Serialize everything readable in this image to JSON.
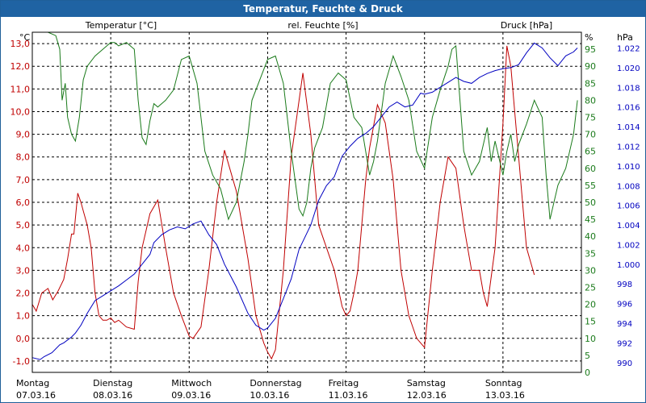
{
  "title": "Temperatur, Feuchte & Druck",
  "colors": {
    "temperature": "#c00000",
    "humidity": "#1a7a1a",
    "pressure": "#0000c0",
    "grid": "#000000",
    "titlebar": "#1f63a3"
  },
  "chart_data": {
    "type": "line",
    "title": "Temperatur, Feuchte & Druck",
    "xlabel": "",
    "x_days": [
      {
        "day": "Montag",
        "date": "07.03.16"
      },
      {
        "day": "Dienstag",
        "date": "08.03.16"
      },
      {
        "day": "Mittwoch",
        "date": "09.03.16"
      },
      {
        "day": "Donnerstag",
        "date": "10.03.16"
      },
      {
        "day": "Freitag",
        "date": "11.03.16"
      },
      {
        "day": "Samstag",
        "date": "12.03.16"
      },
      {
        "day": "Sonntag",
        "date": "13.03.16"
      }
    ],
    "xlim": [
      0,
      7
    ],
    "axes": {
      "left": {
        "label": "Temperatur [°C]",
        "unit": "°C",
        "min": -1.5,
        "max": 13.5,
        "ticks": [
          "-1,0",
          "0,0",
          "1,0",
          "2,0",
          "3,0",
          "4,0",
          "5,0",
          "6,0",
          "7,0",
          "8,0",
          "9,0",
          "10,0",
          "11,0",
          "12,0",
          "13,0"
        ],
        "tick_values": [
          -1,
          0,
          1,
          2,
          3,
          4,
          5,
          6,
          7,
          8,
          9,
          10,
          11,
          12,
          13
        ]
      },
      "right1": {
        "label": "rel. Feuchte [%]",
        "unit": "%",
        "min": 0,
        "max": 100,
        "ticks": [
          "0",
          "5",
          "10",
          "15",
          "20",
          "25",
          "30",
          "35",
          "40",
          "45",
          "50",
          "55",
          "60",
          "65",
          "70",
          "75",
          "80",
          "85",
          "90",
          "95"
        ],
        "tick_values": [
          0,
          5,
          10,
          15,
          20,
          25,
          30,
          35,
          40,
          45,
          50,
          55,
          60,
          65,
          70,
          75,
          80,
          85,
          90,
          95
        ]
      },
      "right2": {
        "label": "Druck [hPa]",
        "unit": "hPa",
        "min": 989,
        "max": 1023.6,
        "ticks": [
          "990",
          "992",
          "994",
          "996",
          "998",
          "1.000",
          "1.002",
          "1.004",
          "1.006",
          "1.008",
          "1.010",
          "1.012",
          "1.014",
          "1.016",
          "1.018",
          "1.020",
          "1.022"
        ],
        "tick_values": [
          990,
          992,
          994,
          996,
          998,
          1000,
          1002,
          1004,
          1006,
          1008,
          1010,
          1012,
          1014,
          1016,
          1018,
          1020,
          1022
        ]
      }
    },
    "series": [
      {
        "name": "Temperatur [°C]",
        "axis": "left",
        "x": [
          0,
          0.05,
          0.12,
          0.2,
          0.26,
          0.33,
          0.4,
          0.45,
          0.5,
          0.53,
          0.58,
          0.62,
          0.66,
          0.7,
          0.75,
          0.8,
          0.85,
          0.9,
          0.95,
          1.0,
          1.05,
          1.1,
          1.2,
          1.3,
          1.35,
          1.4,
          1.5,
          1.6,
          1.7,
          1.8,
          1.9,
          2.0,
          2.05,
          2.15,
          2.25,
          2.35,
          2.45,
          2.6,
          2.75,
          2.85,
          2.95,
          3.0,
          3.05,
          3.1,
          3.2,
          3.3,
          3.45,
          3.55,
          3.65,
          3.75,
          3.85,
          3.95,
          4.0,
          4.05,
          4.1,
          4.15,
          4.2,
          4.25,
          4.3,
          4.4,
          4.5,
          4.6,
          4.7,
          4.8,
          4.9,
          5.0,
          5.1,
          5.2,
          5.3,
          5.4,
          5.5,
          5.55,
          5.6,
          5.65,
          5.7,
          5.75,
          5.8,
          5.9,
          6.0,
          6.05,
          6.1,
          6.15,
          6.2,
          6.25,
          6.3,
          6.4,
          6.5,
          6.6,
          6.7,
          6.8,
          6.9,
          6.95
        ],
        "values": [
          1.5,
          1.2,
          2.0,
          2.2,
          1.7,
          2.1,
          2.6,
          3.5,
          4.6,
          4.6,
          6.4,
          6.0,
          5.5,
          5.0,
          4.0,
          2.0,
          1.0,
          0.8,
          0.8,
          0.9,
          0.7,
          0.8,
          0.5,
          0.4,
          2.5,
          4.0,
          5.5,
          6.1,
          4.0,
          2.0,
          1.0,
          0.1,
          0.0,
          0.5,
          3.0,
          6.0,
          8.3,
          6.5,
          3.5,
          1.0,
          -0.2,
          -0.6,
          -0.9,
          -0.5,
          3.0,
          8.0,
          11.7,
          9.0,
          5.0,
          4.0,
          3.0,
          1.4,
          1.0,
          1.2,
          2.0,
          3.0,
          5.0,
          7.0,
          8.4,
          10.3,
          9.5,
          7.0,
          3.0,
          1.0,
          0.0,
          -0.4,
          3.0,
          6.0,
          8.0,
          7.5,
          5.0,
          4.0,
          3.0,
          3.0,
          3.0,
          2.0,
          1.4,
          4.0,
          9.5,
          12.9,
          12.0,
          10.0,
          8.0,
          6.0,
          4.0,
          2.8,
          null,
          null,
          null,
          null,
          null,
          null
        ]
      },
      {
        "name": "rel. Feuchte [%]",
        "axis": "right1",
        "x": [
          0,
          0.1,
          0.2,
          0.3,
          0.35,
          0.38,
          0.42,
          0.45,
          0.5,
          0.55,
          0.6,
          0.65,
          0.7,
          0.8,
          0.9,
          1.0,
          1.05,
          1.1,
          1.2,
          1.3,
          1.35,
          1.4,
          1.45,
          1.5,
          1.55,
          1.6,
          1.7,
          1.8,
          1.9,
          2.0,
          2.1,
          2.2,
          2.3,
          2.4,
          2.5,
          2.6,
          2.7,
          2.75,
          2.8,
          2.9,
          3.0,
          3.1,
          3.2,
          3.3,
          3.4,
          3.45,
          3.5,
          3.55,
          3.6,
          3.7,
          3.8,
          3.9,
          4.0,
          4.1,
          4.2,
          4.3,
          4.35,
          4.4,
          4.5,
          4.6,
          4.7,
          4.8,
          4.9,
          5.0,
          5.1,
          5.2,
          5.3,
          5.35,
          5.4,
          5.5,
          5.6,
          5.7,
          5.8,
          5.85,
          5.9,
          6.0,
          6.05,
          6.1,
          6.15,
          6.2,
          6.3,
          6.4,
          6.5,
          6.55,
          6.6,
          6.7,
          6.8,
          6.9,
          6.95
        ],
        "values": [
          100,
          100,
          100,
          99,
          95,
          80,
          85,
          75,
          70,
          68,
          75,
          86,
          90,
          93,
          95,
          97,
          97,
          96,
          97,
          95,
          80,
          69,
          67,
          74,
          79,
          78,
          80,
          83,
          92,
          93,
          85,
          65,
          58,
          54,
          45,
          50,
          62,
          70,
          80,
          86,
          92,
          93,
          85,
          65,
          48,
          46,
          50,
          60,
          66,
          72,
          85,
          88,
          86,
          75,
          72,
          58,
          62,
          68,
          85,
          93,
          87,
          80,
          65,
          60,
          75,
          83,
          90,
          95,
          96,
          65,
          58,
          62,
          72,
          62,
          68,
          58,
          65,
          70,
          62,
          67,
          73,
          80,
          75,
          58,
          45,
          55,
          60,
          70,
          80
        ]
      },
      {
        "name": "Druck [hPa]",
        "axis": "right2",
        "x": [
          0,
          0.1,
          0.15,
          0.25,
          0.35,
          0.4,
          0.5,
          0.55,
          0.62,
          0.7,
          0.8,
          0.9,
          1.0,
          1.1,
          1.2,
          1.3,
          1.4,
          1.5,
          1.55,
          1.65,
          1.75,
          1.85,
          1.95,
          2.05,
          2.15,
          2.25,
          2.35,
          2.45,
          2.6,
          2.75,
          2.85,
          2.95,
          3.0,
          3.1,
          3.2,
          3.3,
          3.4,
          3.55,
          3.65,
          3.75,
          3.85,
          3.95,
          4.05,
          4.15,
          4.25,
          4.35,
          4.45,
          4.55,
          4.65,
          4.75,
          4.85,
          4.95,
          5.0,
          5.1,
          5.2,
          5.3,
          5.4,
          5.5,
          5.6,
          5.7,
          5.8,
          5.9,
          6.0,
          6.1,
          6.2,
          6.3,
          6.4,
          6.5,
          6.6,
          6.7,
          6.8,
          6.9,
          6.95
        ],
        "values": [
          990.5,
          990.3,
          990.6,
          991.0,
          991.8,
          992.0,
          992.6,
          993.0,
          993.8,
          995.0,
          996.3,
          996.8,
          997.3,
          997.8,
          998.4,
          999.0,
          1000.0,
          1001.0,
          1002.2,
          1003.0,
          1003.5,
          1003.8,
          1003.6,
          1004.1,
          1004.4,
          1003.0,
          1002.0,
          1000.0,
          997.7,
          995.0,
          993.8,
          993.3,
          993.5,
          994.5,
          996.5,
          998.5,
          1001.5,
          1004.0,
          1006.5,
          1008.0,
          1008.9,
          1011.0,
          1012.0,
          1012.8,
          1013.3,
          1014.0,
          1015.0,
          1016.0,
          1016.5,
          1016.0,
          1016.2,
          1017.4,
          1017.3,
          1017.5,
          1018.0,
          1018.5,
          1019.0,
          1018.6,
          1018.4,
          1019.0,
          1019.4,
          1019.7,
          1019.9,
          1020.0,
          1020.3,
          1021.5,
          1022.5,
          1022.0,
          1021.0,
          1020.2,
          1021.2,
          1021.6,
          1022.0
        ]
      }
    ]
  }
}
